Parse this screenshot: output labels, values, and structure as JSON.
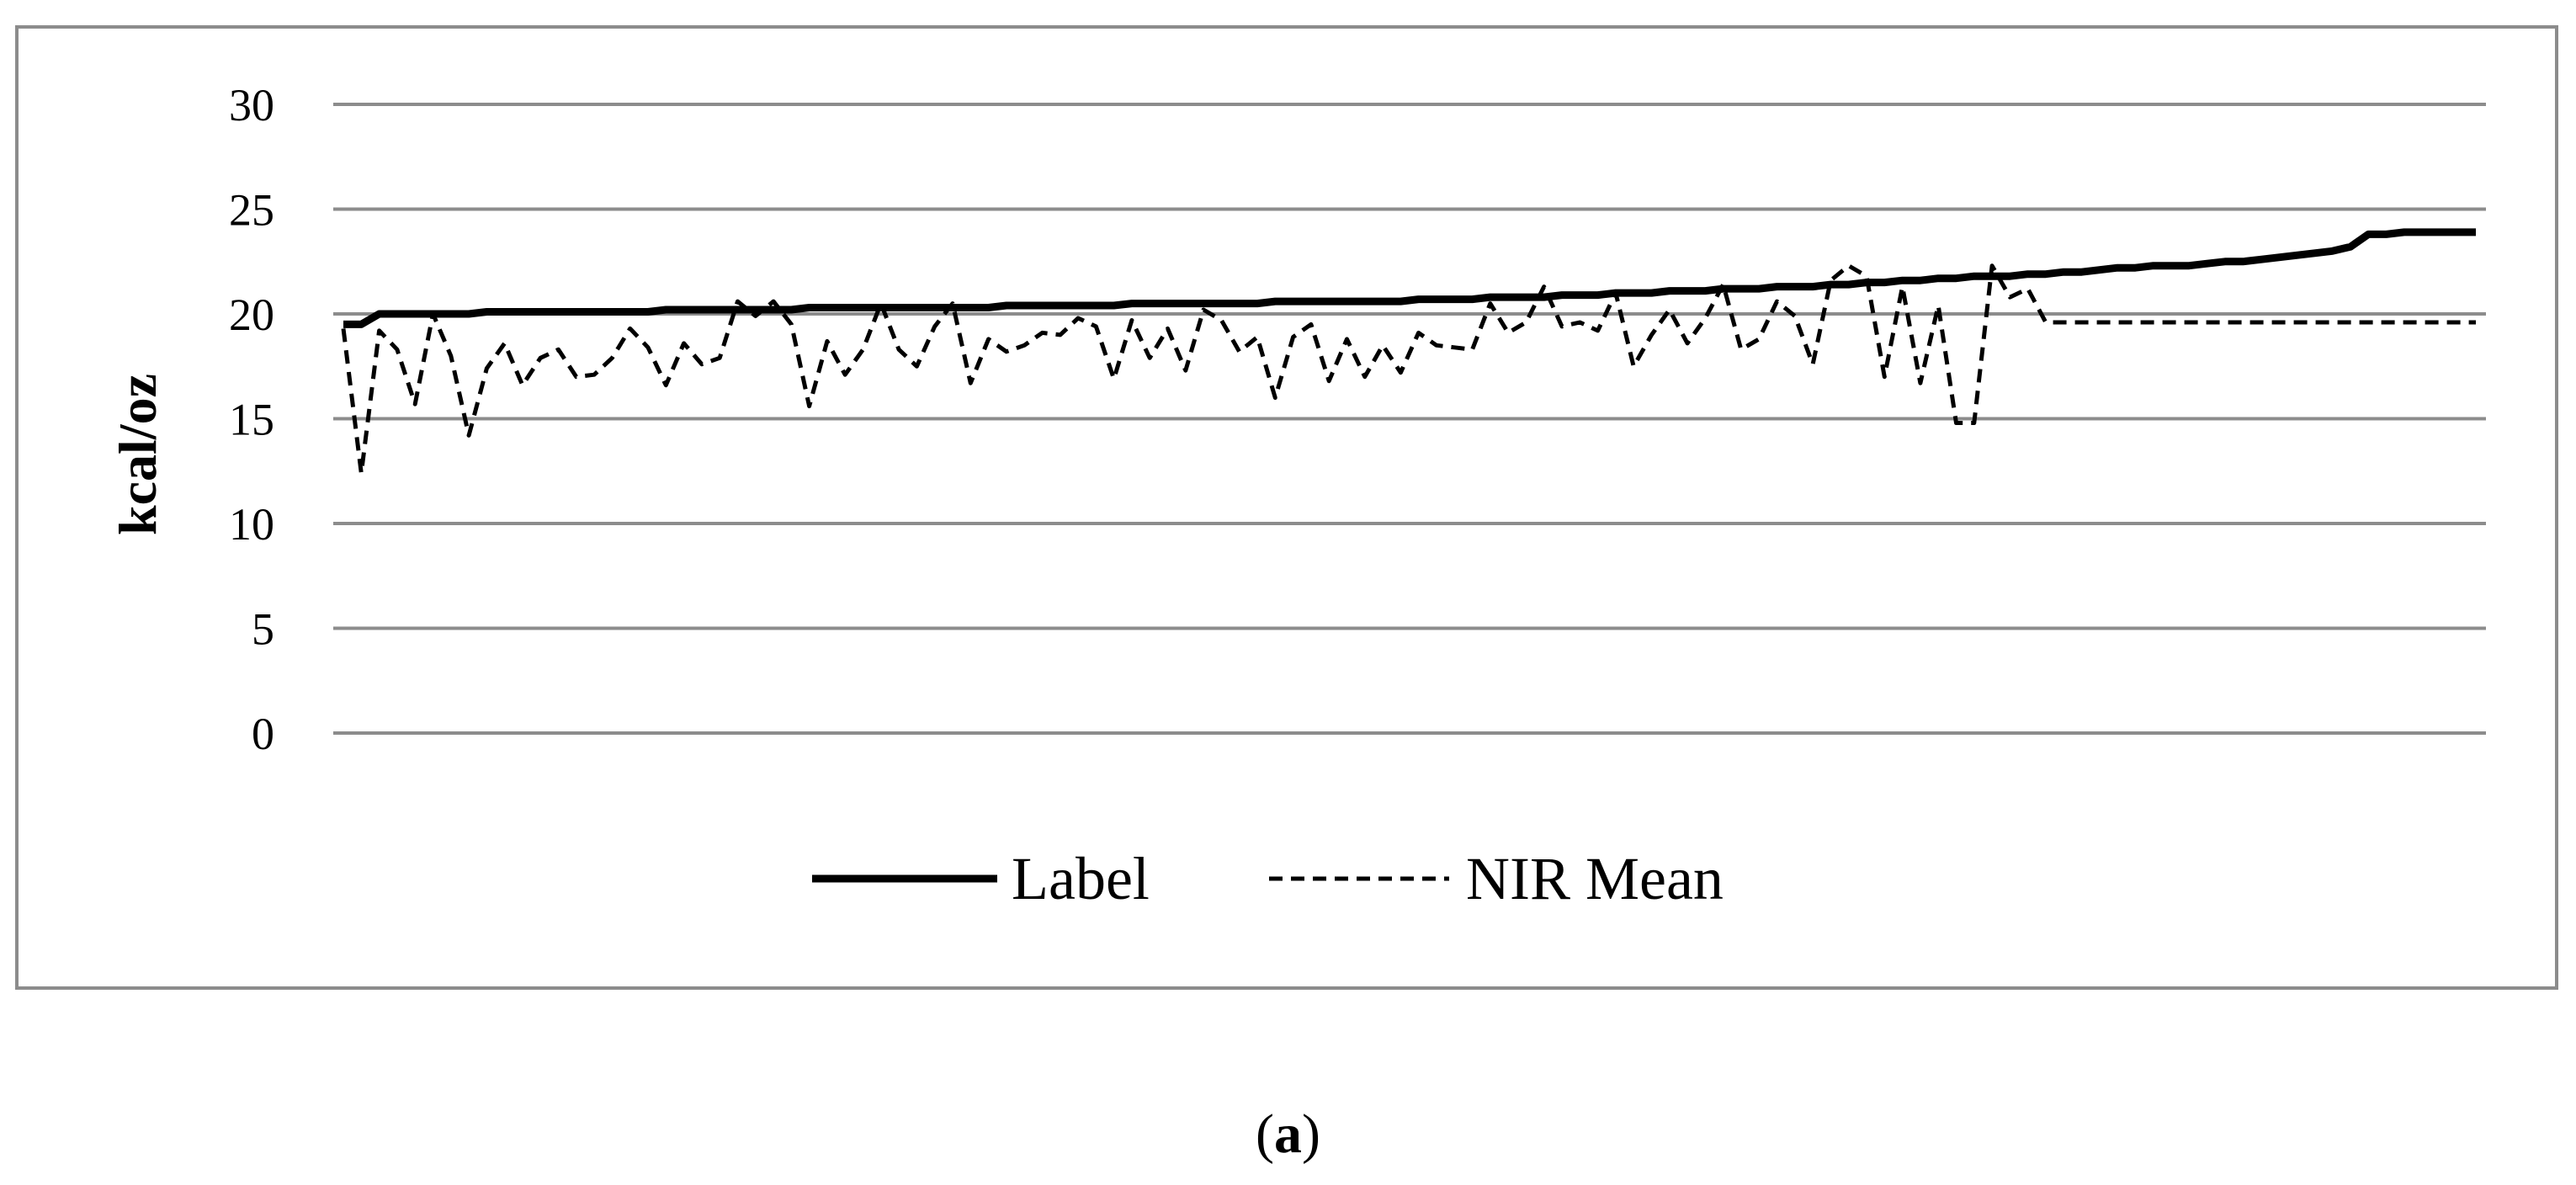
{
  "chart_data": {
    "type": "line",
    "title": "",
    "xlabel": "",
    "ylabel": "kcal/oz",
    "ylim": [
      0,
      30
    ],
    "yticks": [
      0,
      5,
      10,
      15,
      20,
      25,
      30
    ],
    "grid": true,
    "legend_position": "bottom",
    "x": [
      1,
      2,
      3,
      4,
      5,
      6,
      7,
      8,
      9,
      10,
      11,
      12,
      13,
      14,
      15,
      16,
      17,
      18,
      19,
      20,
      21,
      22,
      23,
      24,
      25,
      26,
      27,
      28,
      29,
      30,
      31,
      32,
      33,
      34,
      35,
      36,
      37,
      38,
      39,
      40,
      41,
      42,
      43,
      44,
      45,
      46,
      47,
      48,
      49,
      50,
      51,
      52,
      53,
      54,
      55,
      56,
      57,
      58,
      59,
      60,
      61,
      62,
      63,
      64,
      65,
      66,
      67,
      68,
      69,
      70,
      71,
      72,
      73,
      74,
      75,
      76,
      77,
      78,
      79,
      80,
      81,
      82,
      83,
      84,
      85,
      86,
      87,
      88,
      89,
      90,
      91,
      92,
      93,
      94,
      95,
      96,
      97,
      98,
      99,
      100,
      101,
      102,
      103,
      104,
      105,
      106,
      107,
      108,
      109,
      110,
      111,
      112,
      113,
      114,
      115,
      116,
      117,
      118,
      119,
      120
    ],
    "series": [
      {
        "name": "Label",
        "style": "solid-thick",
        "color": "#000000",
        "values": [
          19.5,
          19.5,
          20.0,
          20.0,
          20.0,
          20.0,
          20.0,
          20.0,
          20.1,
          20.1,
          20.1,
          20.1,
          20.1,
          20.1,
          20.1,
          20.1,
          20.1,
          20.1,
          20.2,
          20.2,
          20.2,
          20.2,
          20.2,
          20.2,
          20.2,
          20.2,
          20.3,
          20.3,
          20.3,
          20.3,
          20.3,
          20.3,
          20.3,
          20.3,
          20.3,
          20.3,
          20.3,
          20.4,
          20.4,
          20.4,
          20.4,
          20.4,
          20.4,
          20.4,
          20.5,
          20.5,
          20.5,
          20.5,
          20.5,
          20.5,
          20.5,
          20.5,
          20.6,
          20.6,
          20.6,
          20.6,
          20.6,
          20.6,
          20.6,
          20.6,
          20.7,
          20.7,
          20.7,
          20.7,
          20.8,
          20.8,
          20.8,
          20.8,
          20.9,
          20.9,
          20.9,
          21.0,
          21.0,
          21.0,
          21.1,
          21.1,
          21.1,
          21.2,
          21.2,
          21.2,
          21.3,
          21.3,
          21.3,
          21.4,
          21.4,
          21.5,
          21.5,
          21.6,
          21.6,
          21.7,
          21.7,
          21.8,
          21.8,
          21.8,
          21.9,
          21.9,
          22.0,
          22.0,
          22.1,
          22.2,
          22.2,
          22.3,
          22.3,
          22.3,
          22.4,
          22.5,
          22.5,
          22.6,
          22.7,
          22.8,
          22.9,
          23.0,
          23.2,
          23.8,
          23.8,
          23.9,
          23.9,
          23.9,
          23.9,
          23.9
        ]
      },
      {
        "name": "NIR Mean",
        "style": "dashed",
        "color": "#000000",
        "values": [
          19.3,
          12.4,
          19.2,
          18.3,
          15.7,
          20.0,
          18.0,
          14.2,
          17.4,
          18.6,
          16.6,
          17.9,
          18.3,
          17.0,
          17.1,
          17.9,
          19.3,
          18.4,
          16.6,
          18.6,
          17.6,
          17.9,
          20.6,
          19.9,
          20.6,
          19.5,
          15.6,
          18.7,
          17.1,
          18.3,
          20.5,
          18.3,
          17.5,
          19.4,
          20.5,
          16.7,
          18.8,
          18.2,
          18.5,
          19.1,
          19.0,
          19.8,
          19.4,
          16.9,
          19.7,
          17.9,
          19.3,
          17.3,
          20.2,
          19.7,
          18.2,
          18.9,
          16.0,
          18.9,
          19.5,
          16.8,
          18.8,
          17.0,
          18.5,
          17.2,
          19.1,
          18.5,
          18.4,
          18.3,
          20.5,
          19.1,
          19.6,
          21.3,
          19.4,
          19.6,
          19.2,
          21.0,
          17.5,
          19.0,
          20.2,
          18.6,
          19.8,
          21.4,
          18.3,
          18.8,
          20.6,
          19.9,
          17.6,
          21.6,
          22.3,
          21.8,
          17.0,
          21.3,
          16.7,
          20.4,
          14.8,
          14.8,
          22.3,
          20.8,
          21.2,
          19.6,
          19.6,
          19.6,
          19.6,
          19.6,
          19.6,
          19.6,
          19.6,
          19.6,
          19.6,
          19.6,
          19.6,
          19.6,
          19.6,
          19.6,
          19.6,
          19.6,
          19.6,
          19.6,
          19.6,
          19.6,
          19.6,
          19.6,
          19.6,
          19.6
        ]
      }
    ]
  },
  "caption": {
    "open": "(",
    "letter": "a",
    "close": ")"
  }
}
